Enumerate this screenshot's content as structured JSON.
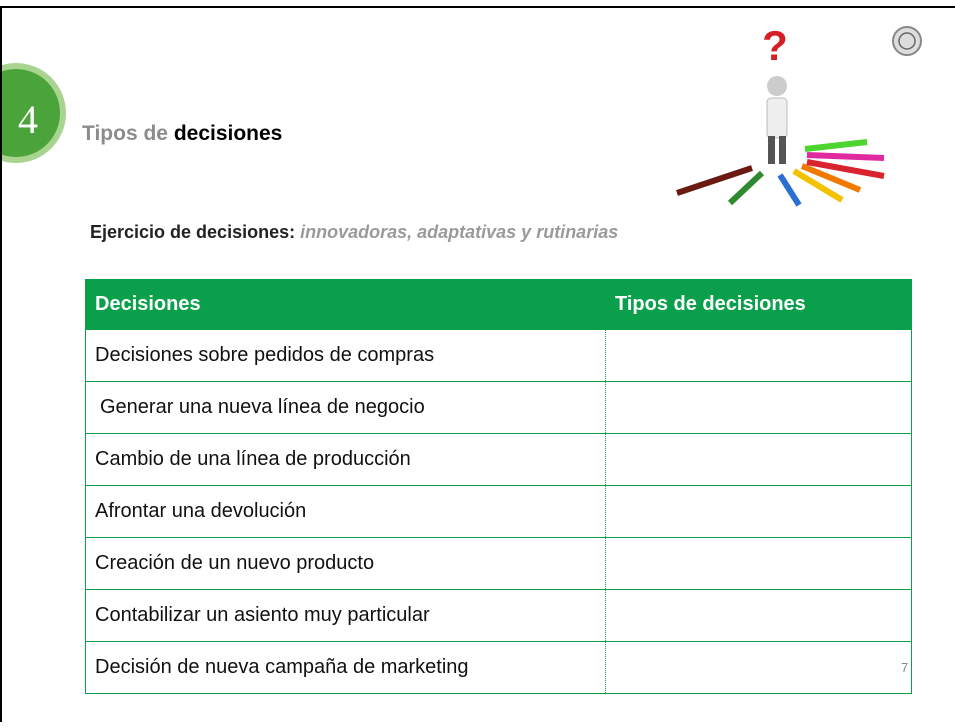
{
  "header": {
    "number": "4",
    "title_light": "Tipos de",
    "title_bold": "decisiones"
  },
  "subtitle": {
    "lead": "Ejercicio de decisiones:",
    "emphasis": "innovadoras, adaptativas y rutinarias"
  },
  "table": {
    "headers": [
      "Decisiones",
      "Tipos de decisiones"
    ],
    "rows": [
      "Decisiones sobre pedidos de compras",
      "Generar una nueva línea de negocio",
      "Cambio de una línea de producción",
      "Afrontar una devolución",
      "Creación de un nuevo producto",
      "Contabilizar un asiento muy particular",
      "Decisión de nueva campaña de marketing"
    ]
  },
  "page_number": "7"
}
